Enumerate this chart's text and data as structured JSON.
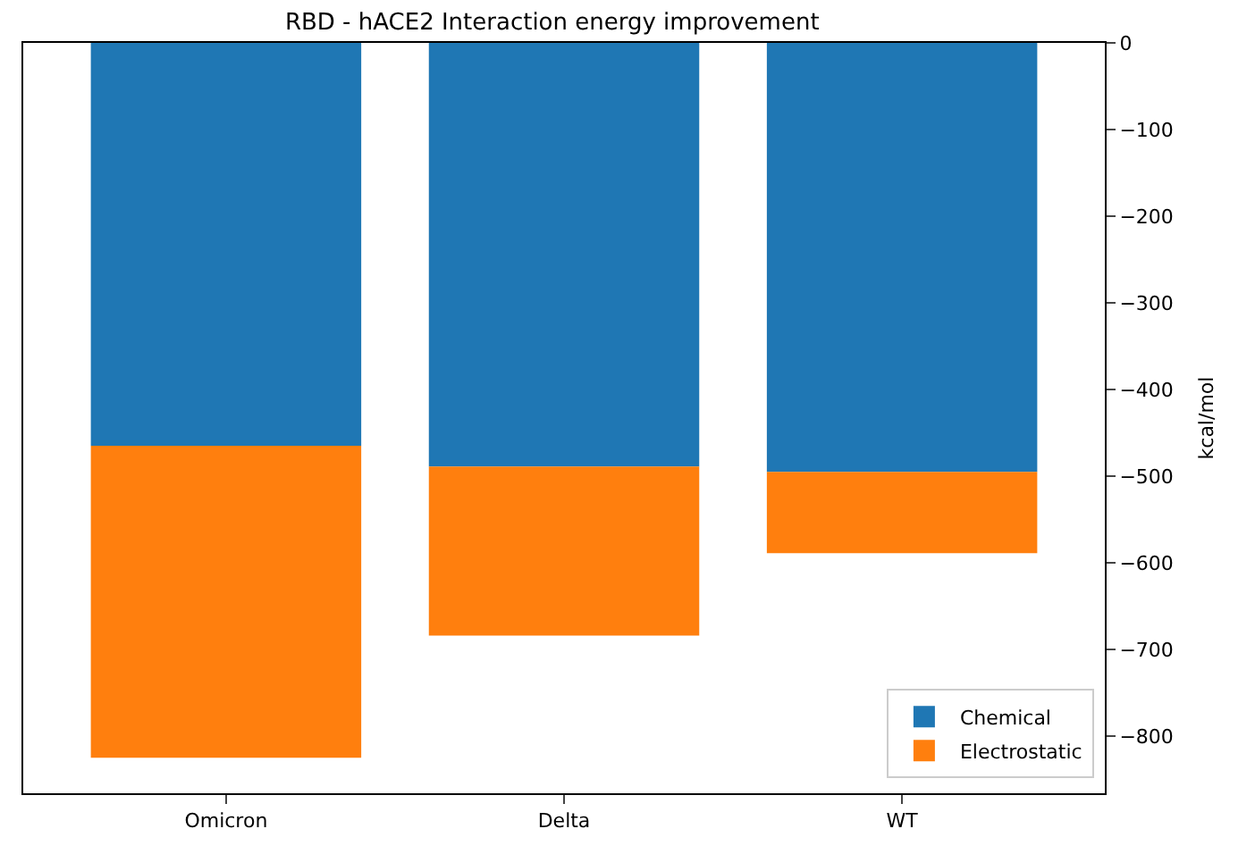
{
  "chart_data": {
    "type": "bar",
    "title": "RBD - hACE2 Interaction energy improvement",
    "ylabel": "kcal/mol",
    "categories": [
      "Omicron",
      "Delta",
      "WT"
    ],
    "stacked": true,
    "series": [
      {
        "name": "Chemical",
        "color": "#1f77b4",
        "values": [
          -465,
          -489,
          -495
        ]
      },
      {
        "name": "Electrostatic",
        "color": "#ff7f0e",
        "values": [
          -360,
          -195,
          -94
        ]
      }
    ],
    "ylim": [
      -866,
      0
    ],
    "yticks": [
      0,
      {
        "value": -100,
        "label": "−100"
      },
      {
        "value": -200,
        "label": "−200"
      },
      {
        "value": -300,
        "label": "−300"
      },
      {
        "value": -400,
        "label": "−400"
      },
      {
        "value": -500,
        "label": "−500"
      },
      {
        "value": -600,
        "label": "−600"
      },
      {
        "value": -700,
        "label": "−700"
      },
      {
        "value": -800,
        "label": "−800"
      }
    ],
    "legend": "bottom right"
  }
}
